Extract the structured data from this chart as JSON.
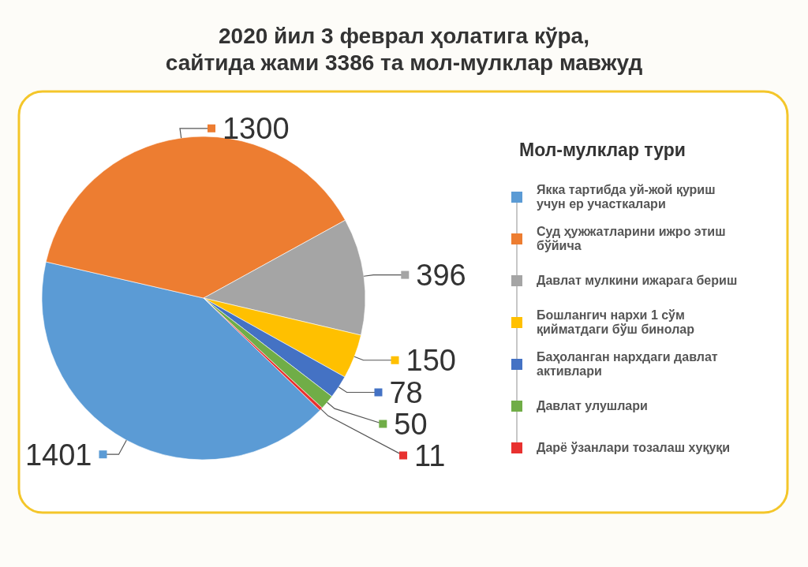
{
  "chart_data": {
    "type": "pie",
    "title": "2020 йил 3 феврал ҳолатига кўра, сайтида жами 3386 та мол-мулклар мавжуд",
    "legend_title": "Мол-мулклар тури",
    "categories": [
      "Якка тартибда уй-жой қуриш учун ер участкалари",
      "Суд ҳужжатларини ижро этиш бўйича",
      "Давлат мулкини ижарага бериш",
      "Бошлангич нархи 1 сўм қийматдаги бўш бинолар",
      "Баҳоланган нархдаги давлат активлари",
      "Давлат улушлари",
      "Дарё ўзанлари тозалаш хуқуқи"
    ],
    "values": [
      1401,
      1300,
      396,
      150,
      78,
      50,
      11
    ],
    "colors": [
      "#5b9bd5",
      "#ed7d31",
      "#a5a5a5",
      "#ffc000",
      "#4472c4",
      "#70ad47",
      "#e8312f"
    ],
    "data_labels": true,
    "legend": "right"
  }
}
